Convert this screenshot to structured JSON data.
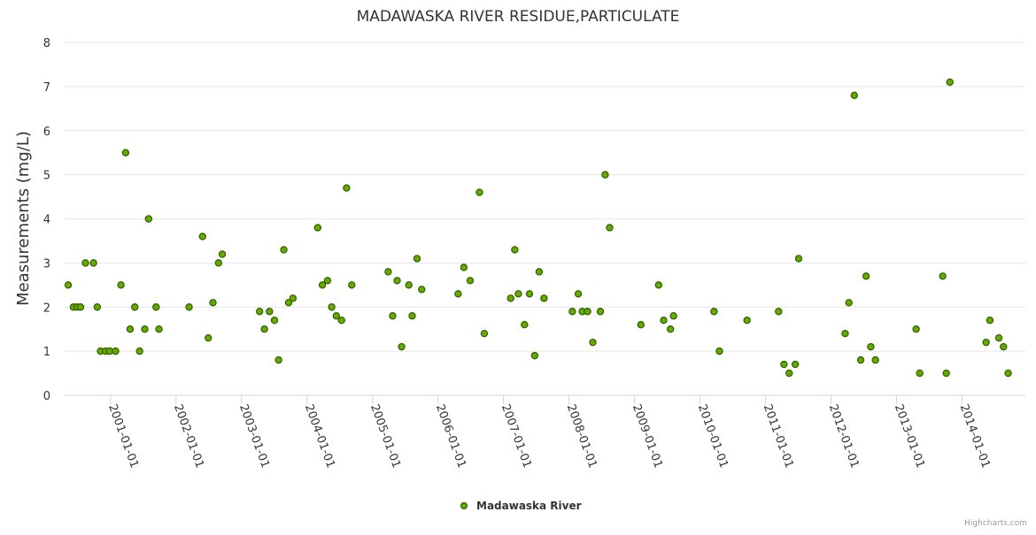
{
  "chart_data": {
    "type": "scatter",
    "title": "MADAWASKA RIVER RESIDUE,PARTICULATE",
    "xlabel": "",
    "ylabel": "Measurements (mg/L)",
    "ylim": [
      0,
      8
    ],
    "yticks": [
      "0",
      "1",
      "2",
      "3",
      "4",
      "5",
      "6",
      "7",
      "8"
    ],
    "xlim": [
      "2000-04-20",
      "2014-12-20"
    ],
    "xticks": [
      "2001-01-01",
      "2002-01-01",
      "2003-01-01",
      "2004-01-01",
      "2005-01-01",
      "2006-01-01",
      "2007-01-01",
      "2008-01-01",
      "2009-01-01",
      "2010-01-01",
      "2011-01-01",
      "2012-01-01",
      "2013-01-01",
      "2014-01-01"
    ],
    "grid": true,
    "legend_position": "bottom-center",
    "series": [
      {
        "name": "Madawaska River",
        "color": "#66aa00",
        "stroke": "#2f5f00",
        "points": [
          {
            "x": "2000-05-10",
            "y": 2.5
          },
          {
            "x": "2000-06-08",
            "y": 2.0
          },
          {
            "x": "2000-06-29",
            "y": 2.0
          },
          {
            "x": "2000-07-18",
            "y": 2.0
          },
          {
            "x": "2000-08-14",
            "y": 3.0
          },
          {
            "x": "2000-09-28",
            "y": 3.0
          },
          {
            "x": "2000-10-19",
            "y": 2.0
          },
          {
            "x": "2000-11-06",
            "y": 1.0
          },
          {
            "x": "2000-12-05",
            "y": 1.0
          },
          {
            "x": "2000-12-27",
            "y": 1.0
          },
          {
            "x": "2001-01-29",
            "y": 1.0
          },
          {
            "x": "2001-02-28",
            "y": 2.5
          },
          {
            "x": "2001-03-26",
            "y": 5.5
          },
          {
            "x": "2001-04-20",
            "y": 1.5
          },
          {
            "x": "2001-05-16",
            "y": 2.0
          },
          {
            "x": "2001-06-12",
            "y": 1.0
          },
          {
            "x": "2001-07-11",
            "y": 1.5
          },
          {
            "x": "2001-08-01",
            "y": 4.0
          },
          {
            "x": "2001-09-12",
            "y": 2.0
          },
          {
            "x": "2001-09-28",
            "y": 1.5
          },
          {
            "x": "2002-03-15",
            "y": 2.0
          },
          {
            "x": "2002-05-29",
            "y": 3.6
          },
          {
            "x": "2002-06-30",
            "y": 1.3
          },
          {
            "x": "2002-07-26",
            "y": 2.1
          },
          {
            "x": "2002-08-26",
            "y": 3.0
          },
          {
            "x": "2002-09-16",
            "y": 3.2
          },
          {
            "x": "2003-04-12",
            "y": 1.9
          },
          {
            "x": "2003-05-09",
            "y": 1.5
          },
          {
            "x": "2003-06-06",
            "y": 1.9
          },
          {
            "x": "2003-07-04",
            "y": 1.7
          },
          {
            "x": "2003-07-27",
            "y": 0.8
          },
          {
            "x": "2003-08-25",
            "y": 3.3
          },
          {
            "x": "2003-09-21",
            "y": 2.1
          },
          {
            "x": "2003-10-15",
            "y": 2.2
          },
          {
            "x": "2004-03-01",
            "y": 3.8
          },
          {
            "x": "2004-03-27",
            "y": 2.5
          },
          {
            "x": "2004-04-25",
            "y": 2.6
          },
          {
            "x": "2004-05-18",
            "y": 2.0
          },
          {
            "x": "2004-06-13",
            "y": 1.8
          },
          {
            "x": "2004-07-12",
            "y": 1.7
          },
          {
            "x": "2004-08-09",
            "y": 4.7
          },
          {
            "x": "2004-09-07",
            "y": 2.5
          },
          {
            "x": "2005-03-29",
            "y": 2.8
          },
          {
            "x": "2005-04-23",
            "y": 1.8
          },
          {
            "x": "2005-05-18",
            "y": 2.6
          },
          {
            "x": "2005-06-12",
            "y": 1.1
          },
          {
            "x": "2005-07-22",
            "y": 2.5
          },
          {
            "x": "2005-08-10",
            "y": 1.8
          },
          {
            "x": "2005-09-06",
            "y": 3.1
          },
          {
            "x": "2005-10-02",
            "y": 2.4
          },
          {
            "x": "2006-04-23",
            "y": 2.3
          },
          {
            "x": "2006-05-25",
            "y": 2.9
          },
          {
            "x": "2006-06-29",
            "y": 2.6
          },
          {
            "x": "2006-08-20",
            "y": 4.6
          },
          {
            "x": "2006-09-16",
            "y": 1.4
          },
          {
            "x": "2007-02-10",
            "y": 2.2
          },
          {
            "x": "2007-03-05",
            "y": 3.3
          },
          {
            "x": "2007-03-25",
            "y": 2.3
          },
          {
            "x": "2007-04-28",
            "y": 1.6
          },
          {
            "x": "2007-05-26",
            "y": 2.3
          },
          {
            "x": "2007-06-24",
            "y": 0.9
          },
          {
            "x": "2007-07-19",
            "y": 2.8
          },
          {
            "x": "2007-08-15",
            "y": 2.2
          },
          {
            "x": "2008-01-20",
            "y": 1.9
          },
          {
            "x": "2008-02-22",
            "y": 2.3
          },
          {
            "x": "2008-03-15",
            "y": 1.9
          },
          {
            "x": "2008-04-14",
            "y": 1.9
          },
          {
            "x": "2008-05-13",
            "y": 1.2
          },
          {
            "x": "2008-06-24",
            "y": 1.9
          },
          {
            "x": "2008-07-21",
            "y": 5.0
          },
          {
            "x": "2008-08-15",
            "y": 3.8
          },
          {
            "x": "2009-02-05",
            "y": 1.6
          },
          {
            "x": "2009-05-15",
            "y": 2.5
          },
          {
            "x": "2009-06-12",
            "y": 1.7
          },
          {
            "x": "2009-07-20",
            "y": 1.5
          },
          {
            "x": "2009-08-06",
            "y": 1.8
          },
          {
            "x": "2010-03-20",
            "y": 1.9
          },
          {
            "x": "2010-04-19",
            "y": 1.0
          },
          {
            "x": "2010-09-20",
            "y": 1.7
          },
          {
            "x": "2011-03-15",
            "y": 1.9
          },
          {
            "x": "2011-04-14",
            "y": 0.7
          },
          {
            "x": "2011-05-13",
            "y": 0.5
          },
          {
            "x": "2011-06-16",
            "y": 0.7
          },
          {
            "x": "2011-07-05",
            "y": 3.1
          },
          {
            "x": "2012-03-20",
            "y": 1.4
          },
          {
            "x": "2012-04-10",
            "y": 2.1
          },
          {
            "x": "2012-05-10",
            "y": 6.8
          },
          {
            "x": "2012-06-15",
            "y": 0.8
          },
          {
            "x": "2012-07-15",
            "y": 2.7
          },
          {
            "x": "2012-08-10",
            "y": 1.1
          },
          {
            "x": "2012-09-05",
            "y": 0.8
          },
          {
            "x": "2013-04-20",
            "y": 1.5
          },
          {
            "x": "2013-05-10",
            "y": 0.5
          },
          {
            "x": "2013-09-15",
            "y": 2.7
          },
          {
            "x": "2013-10-05",
            "y": 0.5
          },
          {
            "x": "2013-10-25",
            "y": 7.1
          },
          {
            "x": "2014-05-15",
            "y": 1.2
          },
          {
            "x": "2014-06-05",
            "y": 1.7
          },
          {
            "x": "2014-07-25",
            "y": 1.3
          },
          {
            "x": "2014-08-20",
            "y": 1.1
          },
          {
            "x": "2014-09-15",
            "y": 0.5
          }
        ]
      }
    ]
  },
  "credits": "Highcharts.com"
}
